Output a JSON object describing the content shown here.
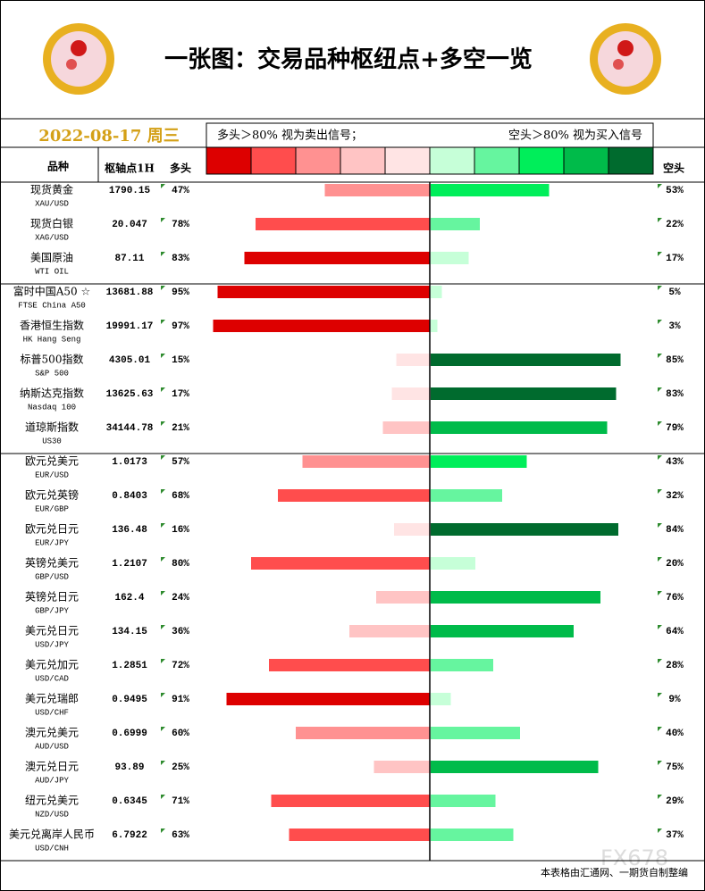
{
  "chart_data": {
    "type": "diverging-bar-table",
    "title": "一张图：交易品种枢纽点+多空一览",
    "date": "2022-08-17 周三",
    "legend_left": "多头＞80% 视为卖出信号；",
    "legend_right": "空头＞80% 视为买入信号",
    "long_colors": [
      "#ffe4e4",
      "#ffc4c4",
      "#ff9191",
      "#ff4d4d",
      "#dd0000"
    ],
    "short_colors": [
      "#c6ffd8",
      "#66f59f",
      "#00ee5a",
      "#00bb4a",
      "#006b2e"
    ],
    "headers": {
      "name": "品种",
      "pivot": "枢轴点1H",
      "long": "多头",
      "short": "空头"
    },
    "sections": [
      {
        "rows": [
          {
            "name": "现货黄金",
            "code": "XAU/USD",
            "pivot": 1790.15,
            "long": 47,
            "long_label": "47%",
            "short": 53,
            "short_label": "53%"
          },
          {
            "name": "现货白银",
            "code": "XAG/USD",
            "pivot": 20.047,
            "long": 78,
            "long_label": "78%",
            "short": 22,
            "short_label": "22%"
          },
          {
            "name": "美国原油",
            "code": "WTI OIL",
            "pivot": 87.11,
            "long": 83,
            "long_label": "83%",
            "short": 17,
            "short_label": "17%"
          }
        ]
      },
      {
        "rows": [
          {
            "name": "富时中国A50 ☆",
            "code": "FTSE China A50",
            "pivot": 13681.88,
            "long": 95,
            "long_label": "95%",
            "short": 5,
            "short_label": "5%"
          },
          {
            "name": "香港恒生指数",
            "code": "HK Hang Seng",
            "pivot": 19991.17,
            "long": 97,
            "long_label": "97%",
            "short": 3,
            "short_label": "3%"
          },
          {
            "name": "标普500指数",
            "code": "S&P 500",
            "pivot": 4305.01,
            "long": 15,
            "long_label": "15%",
            "short": 85,
            "short_label": "85%"
          },
          {
            "name": "纳斯达克指数",
            "code": "Nasdaq 100",
            "pivot": 13625.63,
            "long": 17,
            "long_label": "17%",
            "short": 83,
            "short_label": "83%"
          },
          {
            "name": "道琼斯指数",
            "code": "US30",
            "pivot": 34144.78,
            "long": 21,
            "long_label": "21%",
            "short": 79,
            "short_label": "79%"
          }
        ]
      },
      {
        "rows": [
          {
            "name": "欧元兑美元",
            "code": "EUR/USD",
            "pivot": 1.0173,
            "long": 57,
            "long_label": "57%",
            "short": 43,
            "short_label": "43%"
          },
          {
            "name": "欧元兑英镑",
            "code": "EUR/GBP",
            "pivot": 0.8403,
            "long": 68,
            "long_label": "68%",
            "short": 32,
            "short_label": "32%"
          },
          {
            "name": "欧元兑日元",
            "code": "EUR/JPY",
            "pivot": 136.48,
            "long": 16,
            "long_label": "16%",
            "short": 84,
            "short_label": "84%"
          },
          {
            "name": "英镑兑美元",
            "code": "GBP/USD",
            "pivot": 1.2107,
            "long": 80,
            "long_label": "80%",
            "short": 20,
            "short_label": "20%"
          },
          {
            "name": "英镑兑日元",
            "code": "GBP/JPY",
            "pivot": 162.4,
            "long": 24,
            "long_label": "24%",
            "short": 76,
            "short_label": "76%"
          },
          {
            "name": "美元兑日元",
            "code": "USD/JPY",
            "pivot": 134.15,
            "long": 36,
            "long_label": "36%",
            "short": 64,
            "short_label": "64%"
          },
          {
            "name": "美元兑加元",
            "code": "USD/CAD",
            "pivot": 1.2851,
            "long": 72,
            "long_label": "72%",
            "short": 28,
            "short_label": "28%"
          },
          {
            "name": "美元兑瑞郎",
            "code": "USD/CHF",
            "pivot": 0.9495,
            "long": 91,
            "long_label": "91%",
            "short": 9,
            "short_label": "9%"
          },
          {
            "name": "澳元兑美元",
            "code": "AUD/USD",
            "pivot": 0.6999,
            "long": 60,
            "long_label": "60%",
            "short": 40,
            "short_label": "40%"
          },
          {
            "name": "澳元兑日元",
            "code": "AUD/JPY",
            "pivot": 93.89,
            "long": 25,
            "long_label": "25%",
            "short": 75,
            "short_label": "75%"
          },
          {
            "name": "纽元兑美元",
            "code": "NZD/USD",
            "pivot": 0.6345,
            "long": 71,
            "long_label": "71%",
            "short": 29,
            "short_label": "29%"
          },
          {
            "name": "美元兑离岸人民币",
            "code": "USD/CNH",
            "pivot": 6.7922,
            "long": 63,
            "long_label": "63%",
            "short": 37,
            "short_label": "37%"
          }
        ]
      }
    ],
    "footer": "本表格由汇通网、一期货自制整编",
    "watermark": "FX678"
  }
}
